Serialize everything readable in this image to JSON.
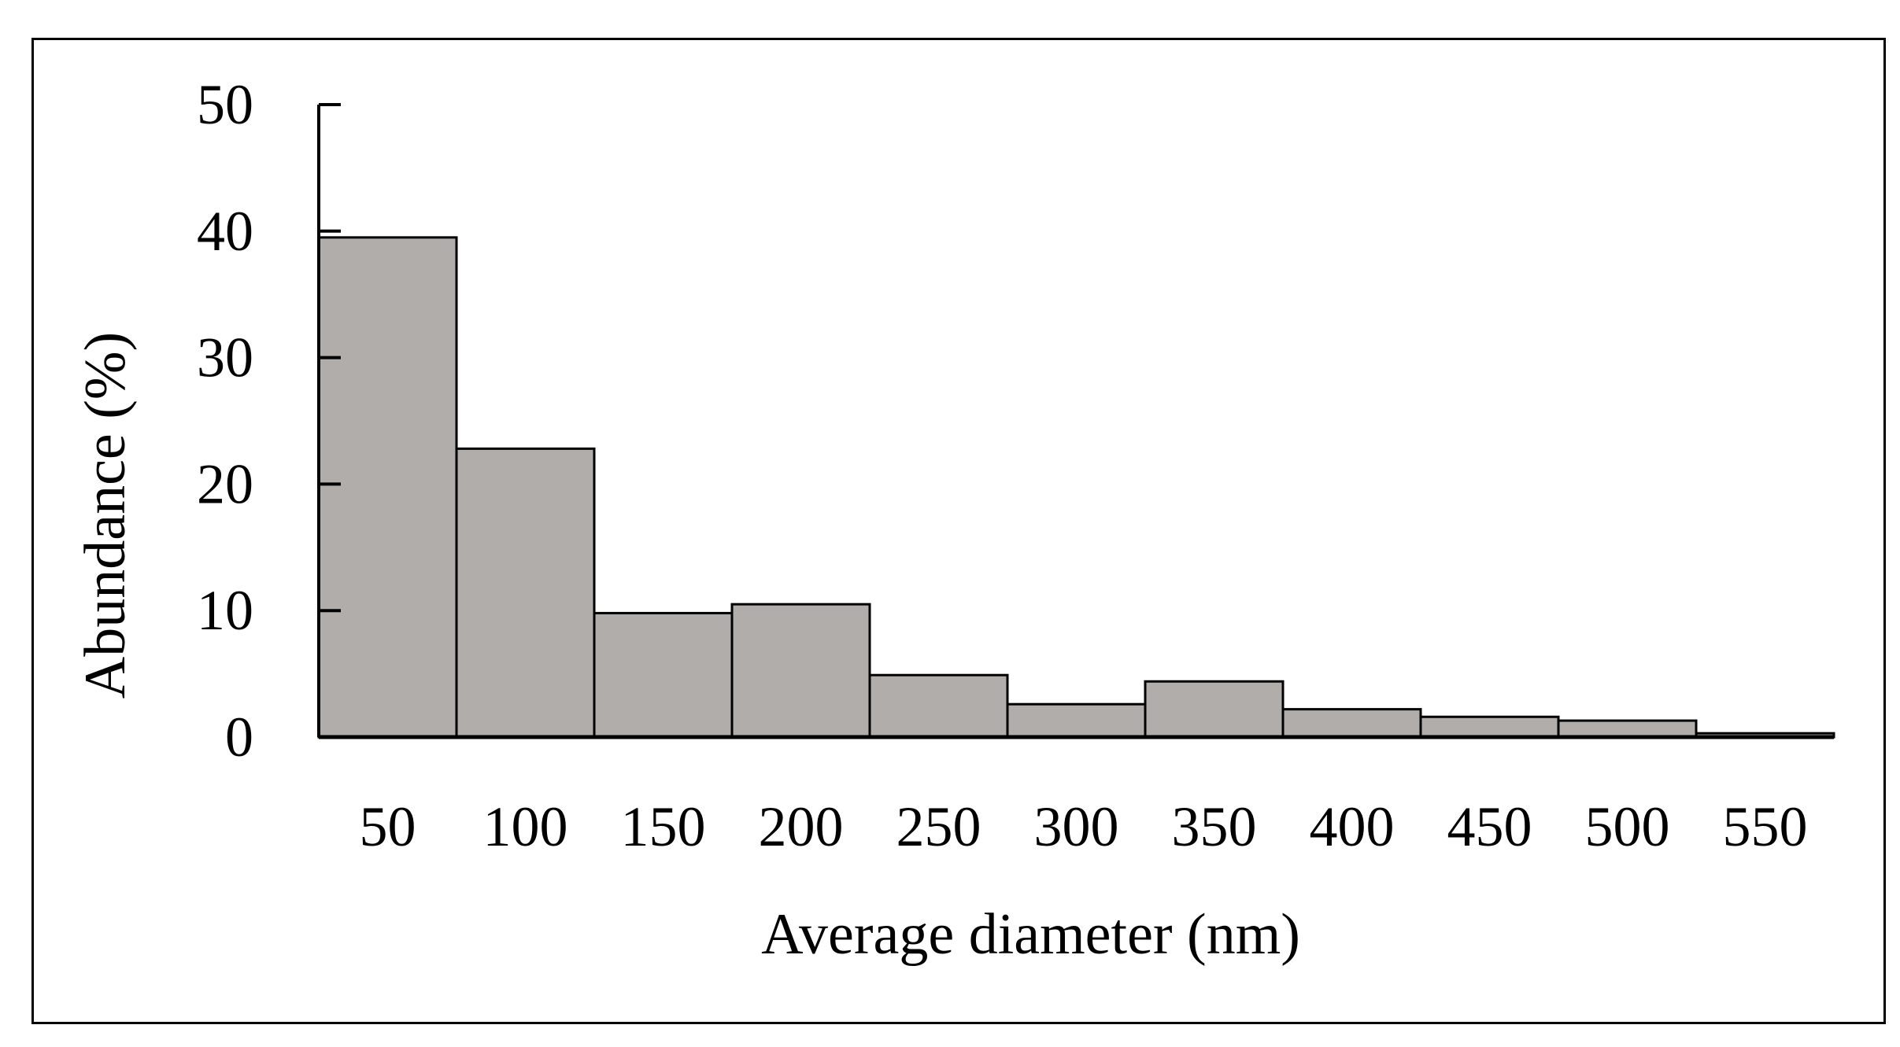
{
  "chart_data": {
    "type": "bar",
    "title": "",
    "xlabel": "Average diameter (nm)",
    "ylabel": "Abundance (%)",
    "categories": [
      "50",
      "100",
      "150",
      "200",
      "250",
      "300",
      "350",
      "400",
      "450",
      "500",
      "550"
    ],
    "values": [
      39.5,
      22.8,
      9.8,
      10.5,
      4.9,
      2.6,
      4.4,
      2.2,
      1.6,
      1.3,
      0.3
    ],
    "ylim": [
      0,
      50
    ],
    "yticks": [
      "0",
      "10",
      "20",
      "30",
      "40",
      "50"
    ],
    "grid": false,
    "legend": "none",
    "colors": {
      "bar_fill": "#b0adab",
      "bar_stroke": "#000000",
      "axis": "#000000"
    }
  }
}
